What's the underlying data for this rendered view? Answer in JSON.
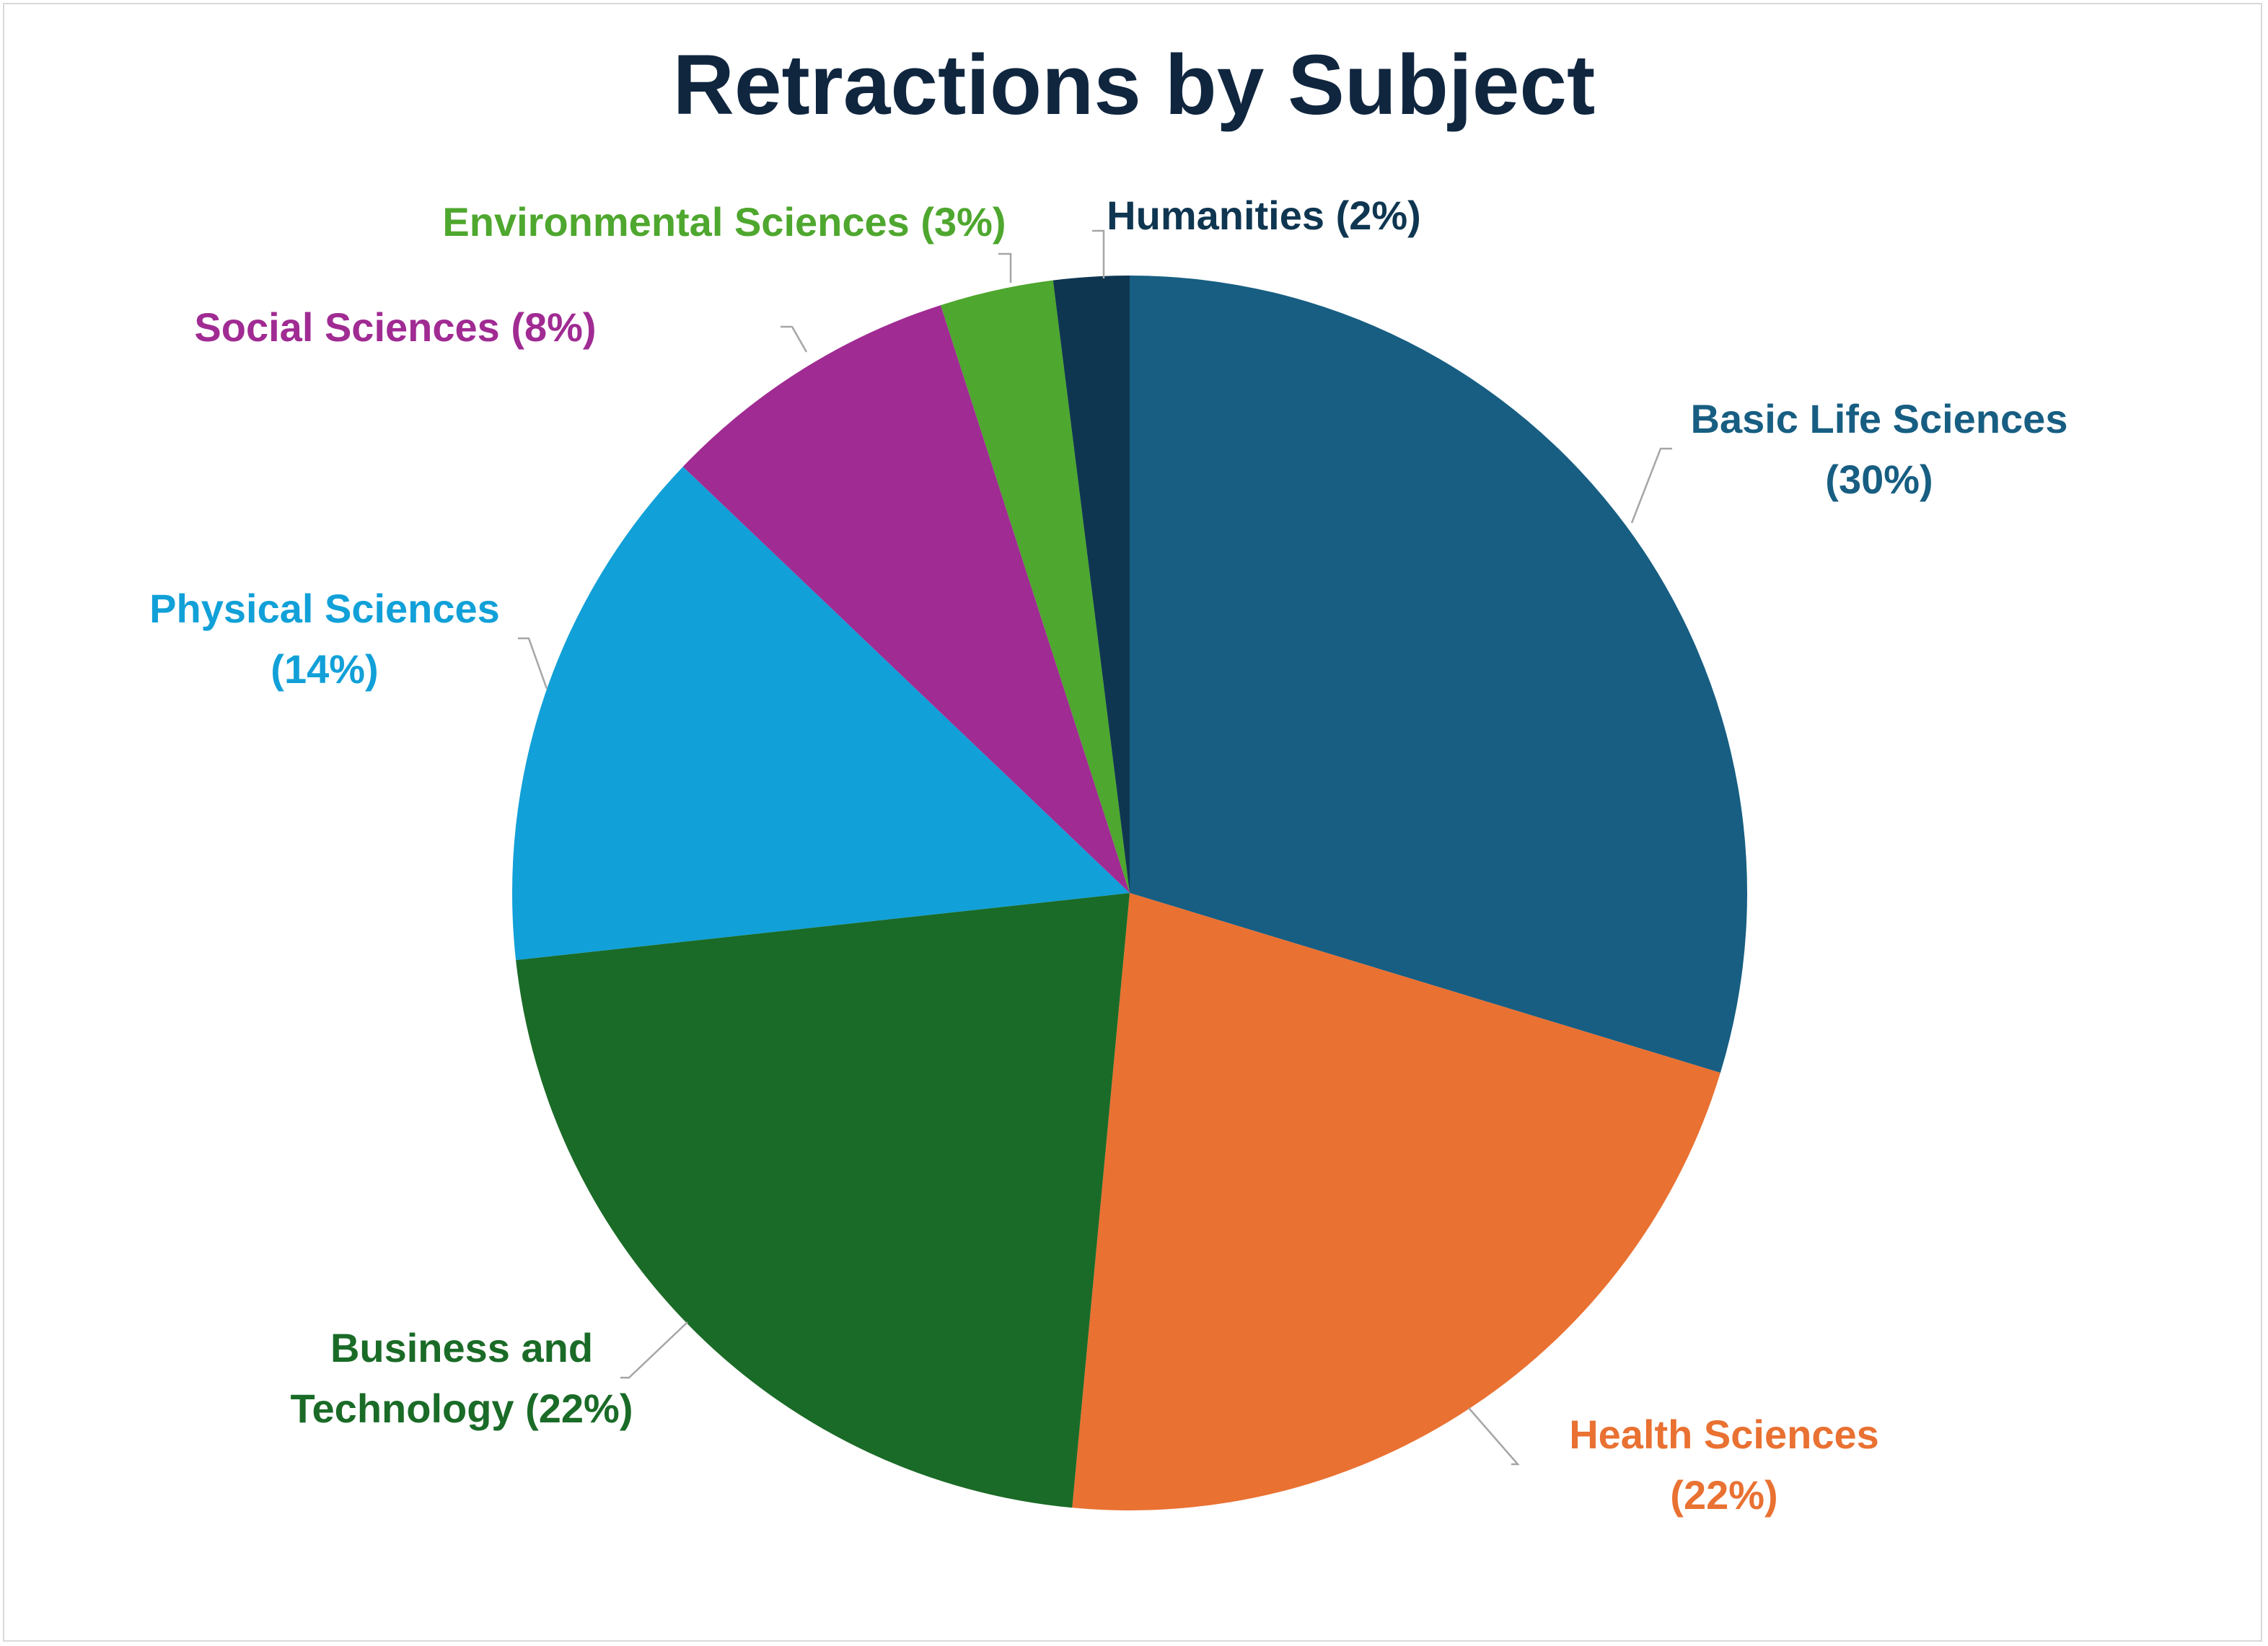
{
  "chart_data": {
    "type": "pie",
    "title": "Retractions by Subject",
    "start_angle_deg": 0,
    "direction": "clockwise",
    "legend": "none",
    "slices": [
      {
        "category": "Basic Life Sciences",
        "percent": 30,
        "label_lines": [
          "Basic Life Sciences",
          "(30%)"
        ],
        "color": "#175e82"
      },
      {
        "category": "Health Sciences",
        "percent": 22,
        "label_lines": [
          "Health Sciences",
          "(22%)"
        ],
        "color": "#e97132"
      },
      {
        "category": "Business and Technology",
        "percent": 22,
        "label_lines": [
          "Business and",
          "Technology (22%)"
        ],
        "color": "#1a6b27"
      },
      {
        "category": "Physical Sciences",
        "percent": 14,
        "label_lines": [
          "Physical Sciences",
          "(14%)"
        ],
        "color": "#11a0d8"
      },
      {
        "category": "Social Sciences",
        "percent": 8,
        "label_lines": [
          "Social Sciences (8%)"
        ],
        "color": "#a02b93"
      },
      {
        "category": "Environmental Sciences",
        "percent": 3,
        "label_lines": [
          "Environmental Sciences (3%)"
        ],
        "color": "#4ea72e"
      },
      {
        "category": "Humanities",
        "percent": 2,
        "label_lines": [
          "Humanities (2%)"
        ],
        "color": "#0f3651"
      }
    ]
  }
}
